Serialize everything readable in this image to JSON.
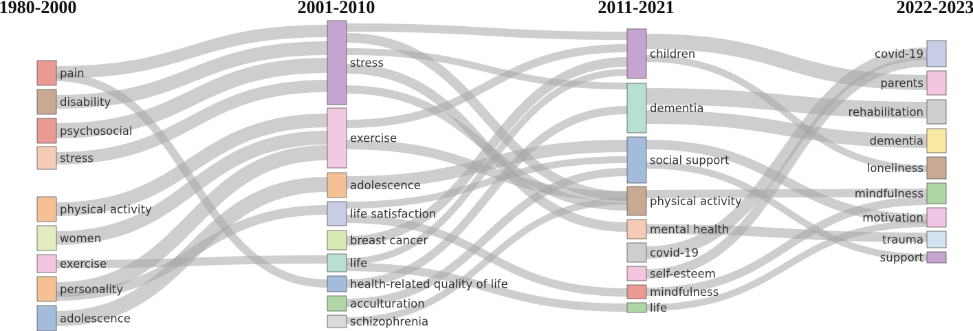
{
  "columns": [
    {
      "period": "1980-2000",
      "nodes": [
        {
          "id": "c0_pain",
          "label": "pain",
          "color": "#e89a93"
        },
        {
          "id": "c0_disability",
          "label": "disability",
          "color": "#c9a994"
        },
        {
          "id": "c0_psychosocial",
          "label": "psychosocial",
          "color": "#e89a93"
        },
        {
          "id": "c0_stress",
          "label": "stress",
          "color": "#f5cbb6"
        },
        {
          "id": "c0_physical_activity",
          "label": "physical activity",
          "color": "#f4c196"
        },
        {
          "id": "c0_women",
          "label": "women",
          "color": "#e1edbe"
        },
        {
          "id": "c0_exercise",
          "label": "exercise",
          "color": "#f3c5df"
        },
        {
          "id": "c0_personality",
          "label": "personality",
          "color": "#f4c196"
        },
        {
          "id": "c0_adolescence",
          "label": "adolescence",
          "color": "#a4bcdb"
        }
      ]
    },
    {
      "period": "2001-2010",
      "nodes": [
        {
          "id": "c1_stress",
          "label": "stress",
          "color": "#c5a5cf"
        },
        {
          "id": "c1_exercise",
          "label": "exercise",
          "color": "#f1c9e0"
        },
        {
          "id": "c1_adolescence",
          "label": "adolescence",
          "color": "#f4c196"
        },
        {
          "id": "c1_life_satisfaction",
          "label": "life satisfaction",
          "color": "#c8cde5"
        },
        {
          "id": "c1_breast_cancer",
          "label": "breast cancer",
          "color": "#dae9b3"
        },
        {
          "id": "c1_life",
          "label": "life",
          "color": "#b8e0d2"
        },
        {
          "id": "c1_hrqol",
          "label": "health-related quality of life",
          "color": "#a4bcdb"
        },
        {
          "id": "c1_acculturation",
          "label": "acculturation",
          "color": "#b0d6a6"
        },
        {
          "id": "c1_schizophrenia",
          "label": "schizophrenia",
          "color": "#d9d9d9"
        }
      ]
    },
    {
      "period": "2011-2021",
      "nodes": [
        {
          "id": "c2_children",
          "label": "children",
          "color": "#c5a5cf"
        },
        {
          "id": "c2_dementia",
          "label": "dementia",
          "color": "#b8e0d2"
        },
        {
          "id": "c2_social_support",
          "label": "social support",
          "color": "#a4bcdb"
        },
        {
          "id": "c2_physical_activity",
          "label": "physical activity",
          "color": "#c9a994"
        },
        {
          "id": "c2_mental_health",
          "label": "mental health",
          "color": "#f5cbb6"
        },
        {
          "id": "c2_covid19",
          "label": "covid-19",
          "color": "#cfcfcf"
        },
        {
          "id": "c2_self_esteem",
          "label": "self-esteem",
          "color": "#f3c5df"
        },
        {
          "id": "c2_mindfulness",
          "label": "mindfulness",
          "color": "#e89a93"
        },
        {
          "id": "c2_life",
          "label": "life",
          "color": "#b0d6a6"
        }
      ]
    },
    {
      "period": "2022-2023",
      "nodes": [
        {
          "id": "c3_covid19",
          "label": "covid-19",
          "color": "#c8cde5"
        },
        {
          "id": "c3_parents",
          "label": "parents",
          "color": "#f3c5df"
        },
        {
          "id": "c3_rehabilitation",
          "label": "rehabilitation",
          "color": "#cfcfcf"
        },
        {
          "id": "c3_dementia",
          "label": "dementia",
          "color": "#f9eaa3"
        },
        {
          "id": "c3_loneliness",
          "label": "loneliness",
          "color": "#c9a994"
        },
        {
          "id": "c3_mindfulness",
          "label": "mindfulness",
          "color": "#b0d6a6"
        },
        {
          "id": "c3_motivation",
          "label": "motivation",
          "color": "#efc5e3"
        },
        {
          "id": "c3_trauma",
          "label": "trauma",
          "color": "#d2e4ef"
        },
        {
          "id": "c3_support",
          "label": "support",
          "color": "#c5a5cf"
        }
      ]
    }
  ]
}
